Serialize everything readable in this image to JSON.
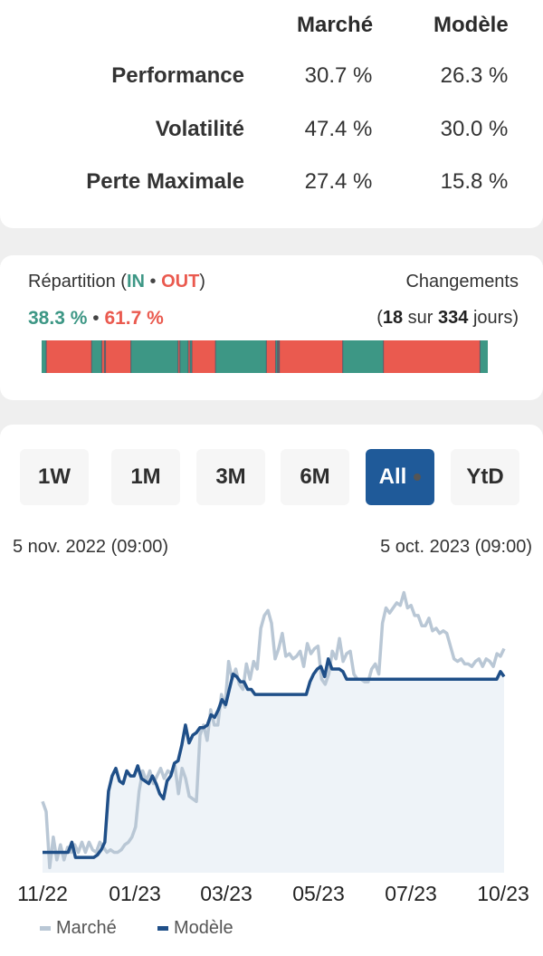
{
  "stats": {
    "columns": [
      "Marché",
      "Modèle"
    ],
    "rows": [
      {
        "label": "Performance",
        "market": "30.7 %",
        "model": "26.3 %"
      },
      {
        "label": "Volatilité",
        "market": "47.4 %",
        "model": "30.0 %"
      },
      {
        "label": "Perte Maximale",
        "market": "27.4 %",
        "model": "15.8 %"
      }
    ]
  },
  "split": {
    "title": "Répartition",
    "in_label": "IN",
    "out_label": "OUT",
    "in_pct": "38.3 %",
    "out_pct": "61.7 %",
    "changes_title": "Changements",
    "changes_count": "18",
    "changes_word": "sur",
    "changes_total": "334",
    "changes_unit": "jours",
    "colors": {
      "in": "#3d9785",
      "out": "#ea5a4f"
    },
    "segments": [
      {
        "state": "in",
        "share": 0.01
      },
      {
        "state": "out",
        "share": 0.098
      },
      {
        "state": "in",
        "share": 0.022
      },
      {
        "state": "out",
        "share": 0.006
      },
      {
        "state": "in",
        "share": 0.002
      },
      {
        "state": "out",
        "share": 0.055
      },
      {
        "state": "in",
        "share": 0.102
      },
      {
        "state": "out",
        "share": 0.004
      },
      {
        "state": "in",
        "share": 0.018
      },
      {
        "state": "out",
        "share": 0.004
      },
      {
        "state": "in",
        "share": 0.004
      },
      {
        "state": "out",
        "share": 0.051
      },
      {
        "state": "in",
        "share": 0.11
      },
      {
        "state": "out",
        "share": 0.02
      },
      {
        "state": "in",
        "share": 0.004
      },
      {
        "state": "out",
        "share": 0.002
      },
      {
        "state": "in",
        "share": 0.002
      },
      {
        "state": "out",
        "share": 0.137
      },
      {
        "state": "in",
        "share": 0.088
      },
      {
        "state": "out",
        "share": 0.209
      },
      {
        "state": "in",
        "share": 0.016
      }
    ]
  },
  "periods": {
    "buttons": [
      "1W",
      "1M",
      "3M",
      "6M",
      "All",
      "YtD"
    ],
    "active": "All"
  },
  "range": {
    "start": "5 nov. 2022 (09:00)",
    "end": "5 oct. 2023 (09:00)"
  },
  "chart_data": {
    "type": "line",
    "x_ticks": [
      "11/22",
      "01/23",
      "03/23",
      "05/23",
      "07/23",
      "10/23"
    ],
    "series": [
      {
        "name": "Marché",
        "color": "#b9c7d5",
        "values": [
          1.0,
          0.96,
          0.74,
          0.86,
          0.77,
          0.83,
          0.77,
          0.82,
          0.8,
          0.83,
          0.8,
          0.84,
          0.8,
          0.84,
          0.81,
          0.8,
          0.84,
          0.82,
          0.8,
          0.81,
          0.8,
          0.8,
          0.81,
          0.83,
          0.84,
          0.86,
          0.9,
          1.04,
          1.12,
          1.08,
          1.12,
          1.07,
          1.1,
          1.13,
          1.09,
          1.12,
          1.11,
          1.14,
          1.03,
          1.13,
          1.09,
          1.02,
          1.01,
          1.0,
          1.26,
          1.3,
          1.24,
          1.36,
          1.3,
          1.3,
          1.42,
          1.37,
          1.55,
          1.48,
          1.52,
          1.46,
          1.44,
          1.54,
          1.48,
          1.55,
          1.52,
          1.68,
          1.73,
          1.75,
          1.7,
          1.56,
          1.6,
          1.66,
          1.57,
          1.58,
          1.56,
          1.57,
          1.59,
          1.53,
          1.62,
          1.58,
          1.6,
          1.61,
          1.48,
          1.46,
          1.5,
          1.59,
          1.56,
          1.64,
          1.55,
          1.58,
          1.59,
          1.5,
          1.48,
          1.48,
          1.47,
          1.47,
          1.52,
          1.54,
          1.5,
          1.7,
          1.76,
          1.74,
          1.76,
          1.78,
          1.77,
          1.82,
          1.76,
          1.77,
          1.73,
          1.73,
          1.69,
          1.69,
          1.72,
          1.67,
          1.68,
          1.66,
          1.67,
          1.66,
          1.61,
          1.56,
          1.55,
          1.56,
          1.54,
          1.54,
          1.53,
          1.55,
          1.56,
          1.53,
          1.56,
          1.55,
          1.53,
          1.58,
          1.57,
          1.6
        ]
      },
      {
        "name": "Modèle",
        "color": "#1f4f88",
        "values": [
          0.8,
          0.8,
          0.8,
          0.8,
          0.8,
          0.8,
          0.8,
          0.8,
          0.84,
          0.78,
          0.78,
          0.78,
          0.78,
          0.78,
          0.78,
          0.79,
          0.81,
          0.84,
          1.04,
          1.1,
          1.13,
          1.08,
          1.07,
          1.12,
          1.1,
          1.1,
          1.14,
          1.09,
          1.08,
          1.07,
          1.1,
          1.07,
          1.03,
          1.01,
          1.08,
          1.1,
          1.15,
          1.16,
          1.22,
          1.3,
          1.23,
          1.26,
          1.27,
          1.29,
          1.29,
          1.3,
          1.34,
          1.33,
          1.36,
          1.4,
          1.38,
          1.44,
          1.5,
          1.49,
          1.47,
          1.47,
          1.44,
          1.44,
          1.42,
          1.42,
          1.42,
          1.42,
          1.42,
          1.42,
          1.42,
          1.42,
          1.42,
          1.42,
          1.42,
          1.42,
          1.42,
          1.42,
          1.42,
          1.47,
          1.5,
          1.52,
          1.53,
          1.49,
          1.56,
          1.52,
          1.52,
          1.52,
          1.51,
          1.48,
          1.48,
          1.48,
          1.48,
          1.48,
          1.48,
          1.48,
          1.48,
          1.48,
          1.48,
          1.48,
          1.48,
          1.48,
          1.48,
          1.48,
          1.48,
          1.48,
          1.48,
          1.48,
          1.48,
          1.48,
          1.48,
          1.48,
          1.48,
          1.48,
          1.48,
          1.48,
          1.48,
          1.48,
          1.48,
          1.48,
          1.48,
          1.48,
          1.48,
          1.48,
          1.48,
          1.48,
          1.48,
          1.48,
          1.48,
          1.48,
          1.48,
          1.51,
          1.49
        ]
      }
    ],
    "legend": [
      "Marché",
      "Modèle"
    ],
    "legend_position": "bottom-left",
    "fill_under": "Modèle",
    "fill_color": "#eef3f8",
    "grid": false
  }
}
